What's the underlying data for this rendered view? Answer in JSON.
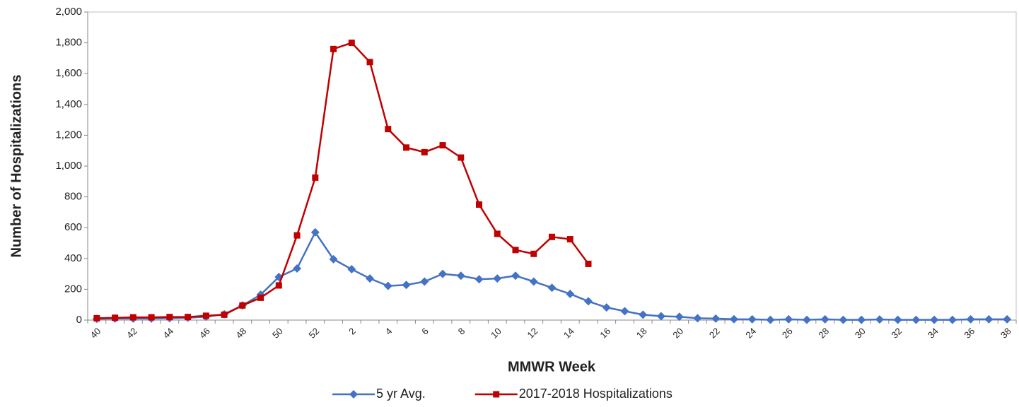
{
  "chart_data": {
    "type": "line",
    "x_label": "MMWR Week",
    "y_label": "Number of Hospitalizations",
    "categories": [
      "40",
      null,
      "42",
      null,
      "44",
      null,
      "46",
      null,
      "48",
      null,
      "50",
      null,
      "52",
      null,
      "2",
      null,
      "4",
      null,
      "6",
      null,
      "8",
      null,
      "10",
      null,
      "12",
      null,
      "14",
      null,
      "16",
      null,
      "18",
      null,
      "20",
      null,
      "22",
      null,
      "24",
      null,
      "26",
      null,
      "28",
      null,
      "30",
      null,
      "32",
      null,
      "34",
      null,
      "36",
      null,
      "38"
    ],
    "series": [
      {
        "name": "5 yr Avg.",
        "color": "#4472c4",
        "marker": "diamond",
        "values": [
          8,
          10,
          10,
          10,
          12,
          15,
          22,
          38,
          95,
          165,
          280,
          335,
          570,
          395,
          330,
          270,
          222,
          228,
          250,
          300,
          288,
          265,
          270,
          288,
          250,
          210,
          170,
          122,
          82,
          58,
          35,
          25,
          22,
          12,
          10,
          6,
          5,
          2,
          5,
          2,
          5,
          2,
          2,
          4,
          2,
          2,
          2,
          2,
          5,
          5,
          5
        ]
      },
      {
        "name": "2017-2018 Hospitalizations",
        "color": "#c00000",
        "marker": "square",
        "values": [
          12,
          15,
          18,
          18,
          20,
          20,
          28,
          35,
          95,
          145,
          225,
          550,
          925,
          1760,
          1800,
          1675,
          1240,
          1120,
          1090,
          1135,
          1055,
          750,
          560,
          455,
          430,
          540,
          525,
          365,
          null,
          null,
          null,
          null,
          null,
          null,
          null,
          null,
          null,
          null,
          null,
          null,
          null,
          null,
          null,
          null,
          null,
          null,
          null,
          null,
          null,
          null,
          null
        ]
      }
    ],
    "ylim": [
      0,
      2000
    ],
    "yticks": [
      0,
      200,
      400,
      600,
      800,
      {
        "value": 1000,
        "label": "1,000"
      },
      {
        "value": 1200,
        "label": "1,200"
      },
      {
        "value": 1400,
        "label": "1,400"
      },
      {
        "value": 1600,
        "label": "1,600"
      },
      {
        "value": 1800,
        "label": "1,800"
      },
      {
        "value": 2000,
        "label": "2,000"
      }
    ],
    "legend": "bottom"
  }
}
